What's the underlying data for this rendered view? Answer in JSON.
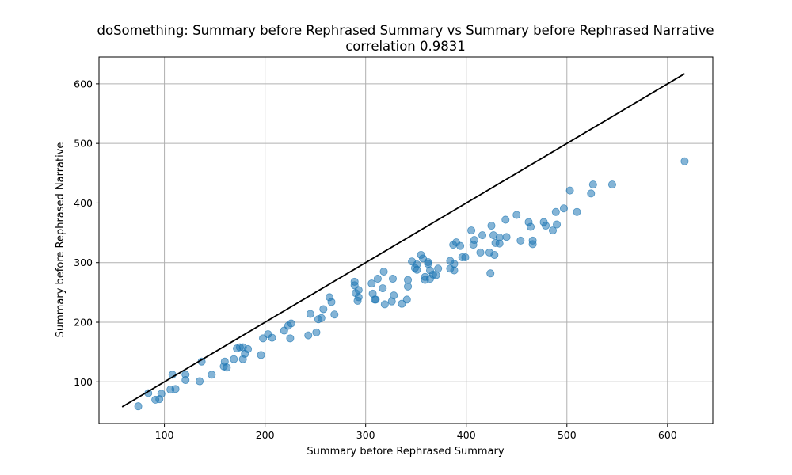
{
  "chart_data": {
    "type": "scatter",
    "title": "doSomething: Summary before Rephrased Summary vs Summary before Rephrased Narrative",
    "subtitle": "correlation 0.9831",
    "xlabel": "Summary before Rephrased Summary",
    "ylabel": "Summary before Rephrased Narrative",
    "xlim": [
      35,
      645
    ],
    "ylim": [
      30,
      645
    ],
    "xticks": [
      100,
      200,
      300,
      400,
      500,
      600
    ],
    "yticks": [
      100,
      200,
      300,
      400,
      500,
      600
    ],
    "grid": true,
    "point_color": "#1f77b4",
    "point_alpha": 0.55,
    "reference_line": {
      "x": [
        58,
        617
      ],
      "y": [
        58,
        617
      ],
      "color": "#000000"
    },
    "points": [
      [
        74,
        59
      ],
      [
        84,
        81
      ],
      [
        91,
        70
      ],
      [
        95,
        71
      ],
      [
        97,
        80
      ],
      [
        106,
        87
      ],
      [
        108,
        112
      ],
      [
        111,
        88
      ],
      [
        121,
        103
      ],
      [
        121,
        112
      ],
      [
        135,
        101
      ],
      [
        137,
        134
      ],
      [
        147,
        112
      ],
      [
        159,
        126
      ],
      [
        160,
        134
      ],
      [
        162,
        124
      ],
      [
        169,
        138
      ],
      [
        172,
        156
      ],
      [
        175,
        158
      ],
      [
        178,
        138
      ],
      [
        178,
        158
      ],
      [
        180,
        147
      ],
      [
        183,
        155
      ],
      [
        196,
        145
      ],
      [
        198,
        173
      ],
      [
        203,
        180
      ],
      [
        207,
        174
      ],
      [
        219,
        186
      ],
      [
        223,
        194
      ],
      [
        226,
        198
      ],
      [
        225,
        173
      ],
      [
        243,
        178
      ],
      [
        245,
        214
      ],
      [
        251,
        183
      ],
      [
        253,
        205
      ],
      [
        256,
        207
      ],
      [
        258,
        222
      ],
      [
        264,
        242
      ],
      [
        266,
        234
      ],
      [
        269,
        213
      ],
      [
        289,
        268
      ],
      [
        289,
        262
      ],
      [
        290,
        249
      ],
      [
        292,
        236
      ],
      [
        293,
        242
      ],
      [
        293,
        254
      ],
      [
        306,
        265
      ],
      [
        307,
        248
      ],
      [
        309,
        238
      ],
      [
        310,
        238
      ],
      [
        312,
        273
      ],
      [
        317,
        257
      ],
      [
        318,
        285
      ],
      [
        319,
        230
      ],
      [
        326,
        235
      ],
      [
        327,
        273
      ],
      [
        328,
        245
      ],
      [
        336,
        231
      ],
      [
        341,
        238
      ],
      [
        342,
        271
      ],
      [
        342,
        260
      ],
      [
        346,
        302
      ],
      [
        349,
        291
      ],
      [
        351,
        297
      ],
      [
        351,
        288
      ],
      [
        355,
        313
      ],
      [
        357,
        307
      ],
      [
        359,
        271
      ],
      [
        359,
        276
      ],
      [
        362,
        301
      ],
      [
        362,
        298
      ],
      [
        364,
        273
      ],
      [
        364,
        287
      ],
      [
        367,
        280
      ],
      [
        370,
        279
      ],
      [
        372,
        290
      ],
      [
        384,
        303
      ],
      [
        384,
        290
      ],
      [
        387,
        330
      ],
      [
        388,
        287
      ],
      [
        388,
        298
      ],
      [
        390,
        334
      ],
      [
        394,
        328
      ],
      [
        396,
        309
      ],
      [
        399,
        309
      ],
      [
        405,
        354
      ],
      [
        407,
        330
      ],
      [
        408,
        338
      ],
      [
        414,
        317
      ],
      [
        416,
        346
      ],
      [
        423,
        317
      ],
      [
        424,
        282
      ],
      [
        425,
        362
      ],
      [
        427,
        346
      ],
      [
        428,
        313
      ],
      [
        429,
        333
      ],
      [
        433,
        332
      ],
      [
        433,
        342
      ],
      [
        439,
        372
      ],
      [
        440,
        343
      ],
      [
        450,
        380
      ],
      [
        454,
        337
      ],
      [
        462,
        368
      ],
      [
        464,
        360
      ],
      [
        466,
        331
      ],
      [
        466,
        337
      ],
      [
        477,
        368
      ],
      [
        479,
        362
      ],
      [
        486,
        354
      ],
      [
        489,
        385
      ],
      [
        490,
        364
      ],
      [
        497,
        391
      ],
      [
        503,
        421
      ],
      [
        510,
        385
      ],
      [
        524,
        416
      ],
      [
        526,
        431
      ],
      [
        545,
        431
      ],
      [
        617,
        470
      ]
    ]
  }
}
